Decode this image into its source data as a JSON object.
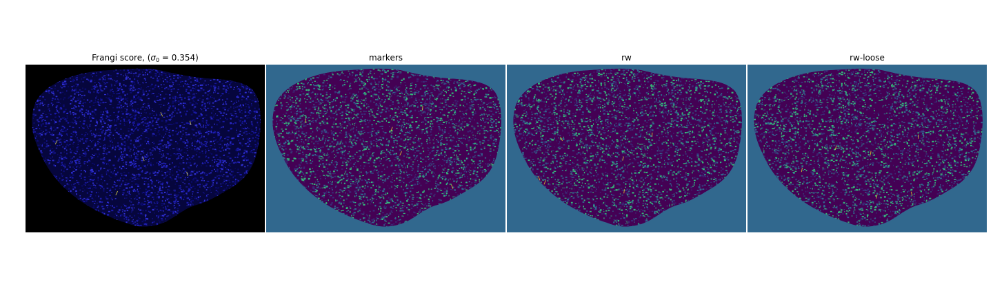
{
  "figure": {
    "panels": [
      {
        "title": "Frangi score, ",
        "title_math": "σ",
        "title_math_sub": "0",
        "title_math_rest": " = 0.354)",
        "title_paren_open": "(",
        "background": "#000000",
        "speckle_colors": [
          "#06063d",
          "#0b0b6e",
          "#1a1aa8",
          "#2f2fd0"
        ],
        "highlight_color": "#f5e94a"
      },
      {
        "title": "markers",
        "background": "#31688e",
        "speckle_colors": [
          "#440154",
          "#3b2a76",
          "#31688e",
          "#35b779"
        ],
        "highlight_color": "#fde725"
      },
      {
        "title": "rw",
        "background": "#31688e",
        "speckle_colors": [
          "#440154",
          "#3b2a76",
          "#31688e",
          "#35b779"
        ],
        "highlight_color": "#fde725"
      },
      {
        "title": "rw-loose",
        "background": "#31688e",
        "speckle_colors": [
          "#440154",
          "#3b2a76",
          "#31688e",
          "#35b779"
        ],
        "highlight_color": "#fde725"
      }
    ]
  }
}
